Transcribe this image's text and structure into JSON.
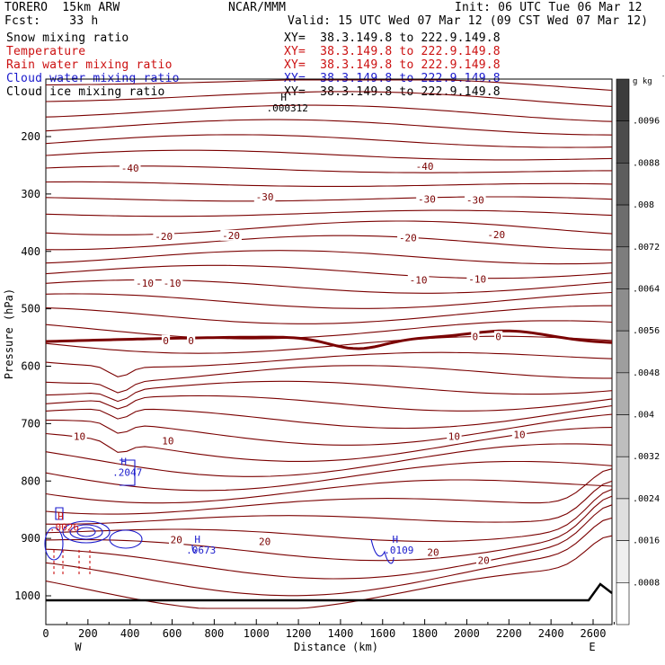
{
  "header": {
    "model": "TORERO  15km ARW",
    "center": "NCAR/MMM",
    "init": "Init: 06 UTC Tue 06 Mar 12",
    "fcst": "Fcst:    33 h",
    "valid": "Valid: 15 UTC Wed 07 Mar 12 (09 CST Wed 07 Mar 12)"
  },
  "fields": [
    {
      "label": "Snow mixing ratio",
      "xy": "XY=  38.3.149.8 to 222.9.149.8",
      "color": "#000000"
    },
    {
      "label": "Temperature",
      "xy": "XY=  38.3.149.8 to 222.9.149.8",
      "color": "#cc1111"
    },
    {
      "label": "Rain water mixing ratio",
      "xy": "XY=  38.3.149.8 to 222.9.149.8",
      "color": "#cc1111"
    },
    {
      "label": "Cloud water mixing ratio",
      "xy": "XY=  38.3.149.8 to 222.9.149.8",
      "color": "#1a1acc"
    },
    {
      "label": "Cloud ice mixing ratio",
      "xy": "XY=  38.3.149.8 to 222.9.149.8",
      "color": "#000000"
    }
  ],
  "chart_data": {
    "type": "cross-section contour",
    "xlabel": "Distance (km)",
    "ylabel": "Pressure (hPa)",
    "xlim": [
      0,
      2750
    ],
    "ylim": [
      1050,
      100
    ],
    "x_ticks": [
      "0",
      "200",
      "400",
      "600",
      "800",
      "1000",
      "1200",
      "1400",
      "1600",
      "1800",
      "2000",
      "2200",
      "2400",
      "2600"
    ],
    "y_ticks": [
      "200",
      "300",
      "400",
      "500",
      "600",
      "700",
      "800",
      "900",
      "1000"
    ],
    "endpoints": {
      "left": "W",
      "right": "E"
    },
    "colorbar": {
      "unit": "g kg",
      "unit_exponent": "-1",
      "labels": [
        ".0096",
        ".0088",
        ".008",
        ".0072",
        ".0064",
        ".0056",
        ".0048",
        ".004",
        ".0032",
        ".0024",
        ".0016",
        ".0008"
      ]
    },
    "temperature_labels": [
      {
        "text": "-40",
        "x": 400,
        "p": 255
      },
      {
        "text": "-40",
        "x": 1800,
        "p": 252
      },
      {
        "text": "-30",
        "x": 1040,
        "p": 305
      },
      {
        "text": "-30",
        "x": 1810,
        "p": 309
      },
      {
        "text": "-30",
        "x": 2040,
        "p": 310
      },
      {
        "text": "-20",
        "x": 560,
        "p": 374
      },
      {
        "text": "-20",
        "x": 880,
        "p": 372
      },
      {
        "text": "-20",
        "x": 1720,
        "p": 376
      },
      {
        "text": "-20",
        "x": 2140,
        "p": 371
      },
      {
        "text": "-10",
        "x": 470,
        "p": 455
      },
      {
        "text": "-10",
        "x": 600,
        "p": 455
      },
      {
        "text": "-10",
        "x": 1770,
        "p": 450
      },
      {
        "text": "-10",
        "x": 2050,
        "p": 448
      },
      {
        "text": "0",
        "x": 570,
        "p": 555
      },
      {
        "text": "0",
        "x": 690,
        "p": 555
      },
      {
        "text": "0",
        "x": 2040,
        "p": 548
      },
      {
        "text": "0",
        "x": 2150,
        "p": 548
      },
      {
        "text": "10",
        "x": 160,
        "p": 722
      },
      {
        "text": "10",
        "x": 580,
        "p": 730
      },
      {
        "text": "10",
        "x": 1940,
        "p": 722
      },
      {
        "text": "10",
        "x": 2250,
        "p": 719
      },
      {
        "text": "20",
        "x": 620,
        "p": 902
      },
      {
        "text": "20",
        "x": 1040,
        "p": 905
      },
      {
        "text": "20",
        "x": 1840,
        "p": 924
      },
      {
        "text": "20",
        "x": 2080,
        "p": 938
      }
    ],
    "extrema": [
      {
        "marker": "H",
        "value": ".000312",
        "x": 1130,
        "p": 150,
        "color": "#000000"
      },
      {
        "marker": "H",
        "value": ".2047",
        "x": 370,
        "p": 785,
        "color": "#1a1acc"
      },
      {
        "marker": "H",
        "value": ".0026",
        "x": 70,
        "p": 880,
        "color": "#cc1111"
      },
      {
        "marker": "H",
        "value": ".0673",
        "x": 720,
        "p": 920,
        "color": "#1a1acc"
      },
      {
        "marker": "H",
        "value": ".0109",
        "x": 1660,
        "p": 920,
        "color": "#1a1acc"
      }
    ],
    "contour_levels": {
      "temperature_degC": [
        -40,
        -30,
        -20,
        -10,
        0,
        10,
        20
      ],
      "cloud_water_g_per_kg": [
        0.0673,
        0.0109,
        0.2047
      ]
    }
  }
}
